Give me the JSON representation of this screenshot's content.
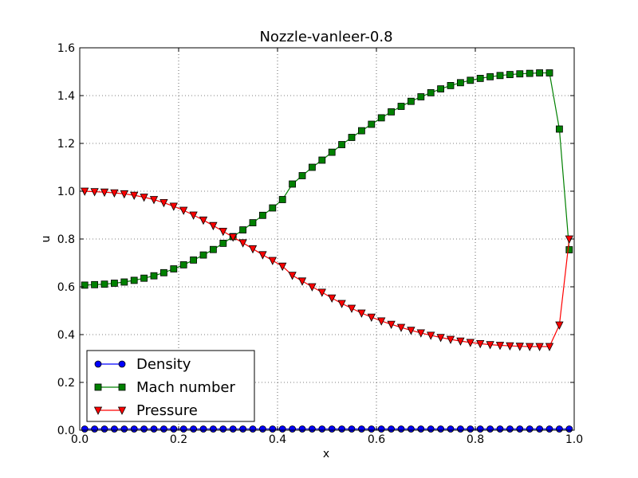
{
  "chart_data": {
    "type": "line",
    "title": "Nozzle-vanleer-0.8",
    "xlabel": "x",
    "ylabel": "u",
    "xlim": [
      0.0,
      1.0
    ],
    "ylim": [
      0.0,
      1.6
    ],
    "xticks": [
      "0.0",
      "0.2",
      "0.4",
      "0.6",
      "0.8",
      "1.0"
    ],
    "yticks": [
      "0.0",
      "0.2",
      "0.4",
      "0.6",
      "0.8",
      "1.0",
      "1.2",
      "1.4",
      "1.6"
    ],
    "grid": true,
    "legend_position": "lower-left",
    "x": [
      0.01,
      0.03,
      0.05,
      0.07,
      0.09,
      0.11,
      0.13,
      0.15,
      0.17,
      0.19,
      0.21,
      0.23,
      0.25,
      0.27,
      0.29,
      0.31,
      0.33,
      0.35,
      0.37,
      0.39,
      0.41,
      0.43,
      0.45,
      0.47,
      0.49,
      0.51,
      0.53,
      0.55,
      0.57,
      0.59,
      0.61,
      0.63,
      0.65,
      0.67,
      0.69,
      0.71,
      0.73,
      0.75,
      0.77,
      0.79,
      0.81,
      0.83,
      0.85,
      0.87,
      0.89,
      0.91,
      0.93,
      0.95,
      0.97,
      0.99
    ],
    "series": [
      {
        "name": "Density",
        "color": "#0000ff",
        "marker": "circle",
        "values": [
          0.005,
          0.005,
          0.005,
          0.005,
          0.005,
          0.005,
          0.005,
          0.005,
          0.005,
          0.005,
          0.005,
          0.005,
          0.005,
          0.005,
          0.005,
          0.005,
          0.005,
          0.005,
          0.005,
          0.005,
          0.005,
          0.005,
          0.005,
          0.005,
          0.005,
          0.005,
          0.005,
          0.005,
          0.005,
          0.005,
          0.005,
          0.005,
          0.005,
          0.005,
          0.005,
          0.005,
          0.005,
          0.005,
          0.005,
          0.005,
          0.005,
          0.005,
          0.005,
          0.005,
          0.005,
          0.005,
          0.005,
          0.005,
          0.005,
          0.005
        ]
      },
      {
        "name": "Mach number",
        "color": "#008000",
        "marker": "square",
        "values": [
          0.607,
          0.609,
          0.611,
          0.615,
          0.62,
          0.627,
          0.636,
          0.646,
          0.659,
          0.675,
          0.692,
          0.712,
          0.733,
          0.756,
          0.782,
          0.81,
          0.838,
          0.868,
          0.899,
          0.93,
          0.965,
          1.03,
          1.065,
          1.1,
          1.13,
          1.163,
          1.195,
          1.225,
          1.253,
          1.28,
          1.307,
          1.332,
          1.355,
          1.376,
          1.395,
          1.412,
          1.428,
          1.442,
          1.454,
          1.464,
          1.472,
          1.479,
          1.484,
          1.488,
          1.491,
          1.493,
          1.495,
          1.495,
          1.26,
          0.755
        ]
      },
      {
        "name": "Pressure",
        "color": "#ff0000",
        "marker": "triangle-down",
        "values": [
          1.0,
          0.998,
          0.996,
          0.993,
          0.989,
          0.983,
          0.975,
          0.965,
          0.952,
          0.937,
          0.92,
          0.9,
          0.879,
          0.856,
          0.832,
          0.808,
          0.784,
          0.759,
          0.734,
          0.71,
          0.686,
          0.648,
          0.624,
          0.6,
          0.577,
          0.553,
          0.53,
          0.51,
          0.49,
          0.473,
          0.457,
          0.443,
          0.43,
          0.418,
          0.407,
          0.397,
          0.388,
          0.38,
          0.373,
          0.367,
          0.362,
          0.358,
          0.355,
          0.353,
          0.351,
          0.35,
          0.35,
          0.35,
          0.44,
          0.8
        ]
      }
    ]
  }
}
